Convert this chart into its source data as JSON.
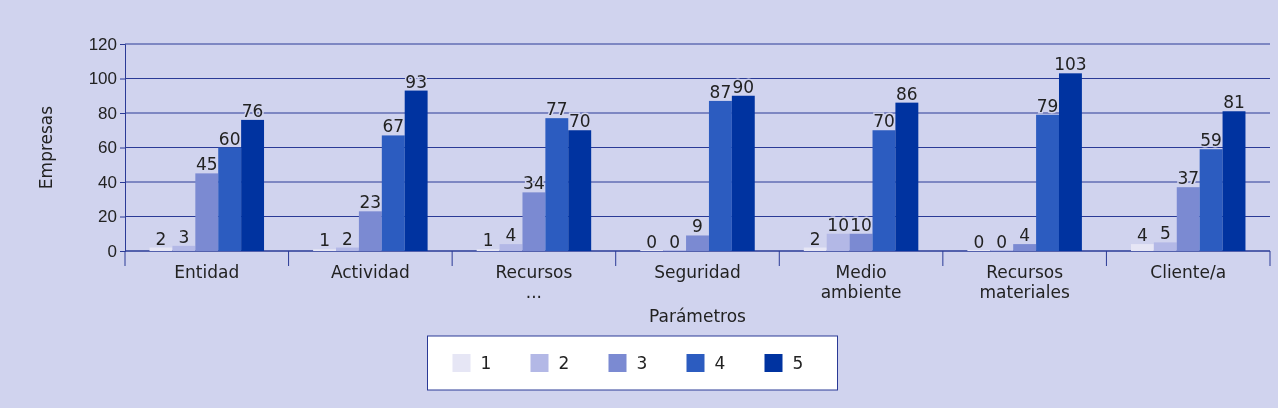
{
  "chart_data": {
    "type": "bar",
    "xlabel": "Parámetros",
    "ylabel": "Empresas",
    "categories": [
      "Entidad",
      "Actividad",
      "Recursos ...",
      "Seguridad",
      "Medio ambiente",
      "Recursos materiales",
      "Cliente/a"
    ],
    "series": [
      {
        "name": "1",
        "color": "#e6e6f5",
        "values": [
          2,
          1,
          1,
          0,
          2,
          0,
          4
        ]
      },
      {
        "name": "2",
        "color": "#b3b8e6",
        "values": [
          3,
          2,
          4,
          0,
          10,
          0,
          5
        ]
      },
      {
        "name": "3",
        "color": "#7b8ad2",
        "values": [
          45,
          23,
          34,
          9,
          10,
          4,
          37
        ]
      },
      {
        "name": "4",
        "color": "#2c5cc0",
        "values": [
          60,
          67,
          77,
          87,
          70,
          79,
          59
        ]
      },
      {
        "name": "5",
        "color": "#0033a0",
        "values": [
          76,
          93,
          70,
          90,
          86,
          103,
          81
        ]
      }
    ],
    "ylim": [
      0,
      120
    ],
    "yticks": [
      0,
      20,
      40,
      60,
      80,
      100,
      120
    ],
    "grid": "y",
    "legend": "bottom",
    "data_labels": true
  }
}
